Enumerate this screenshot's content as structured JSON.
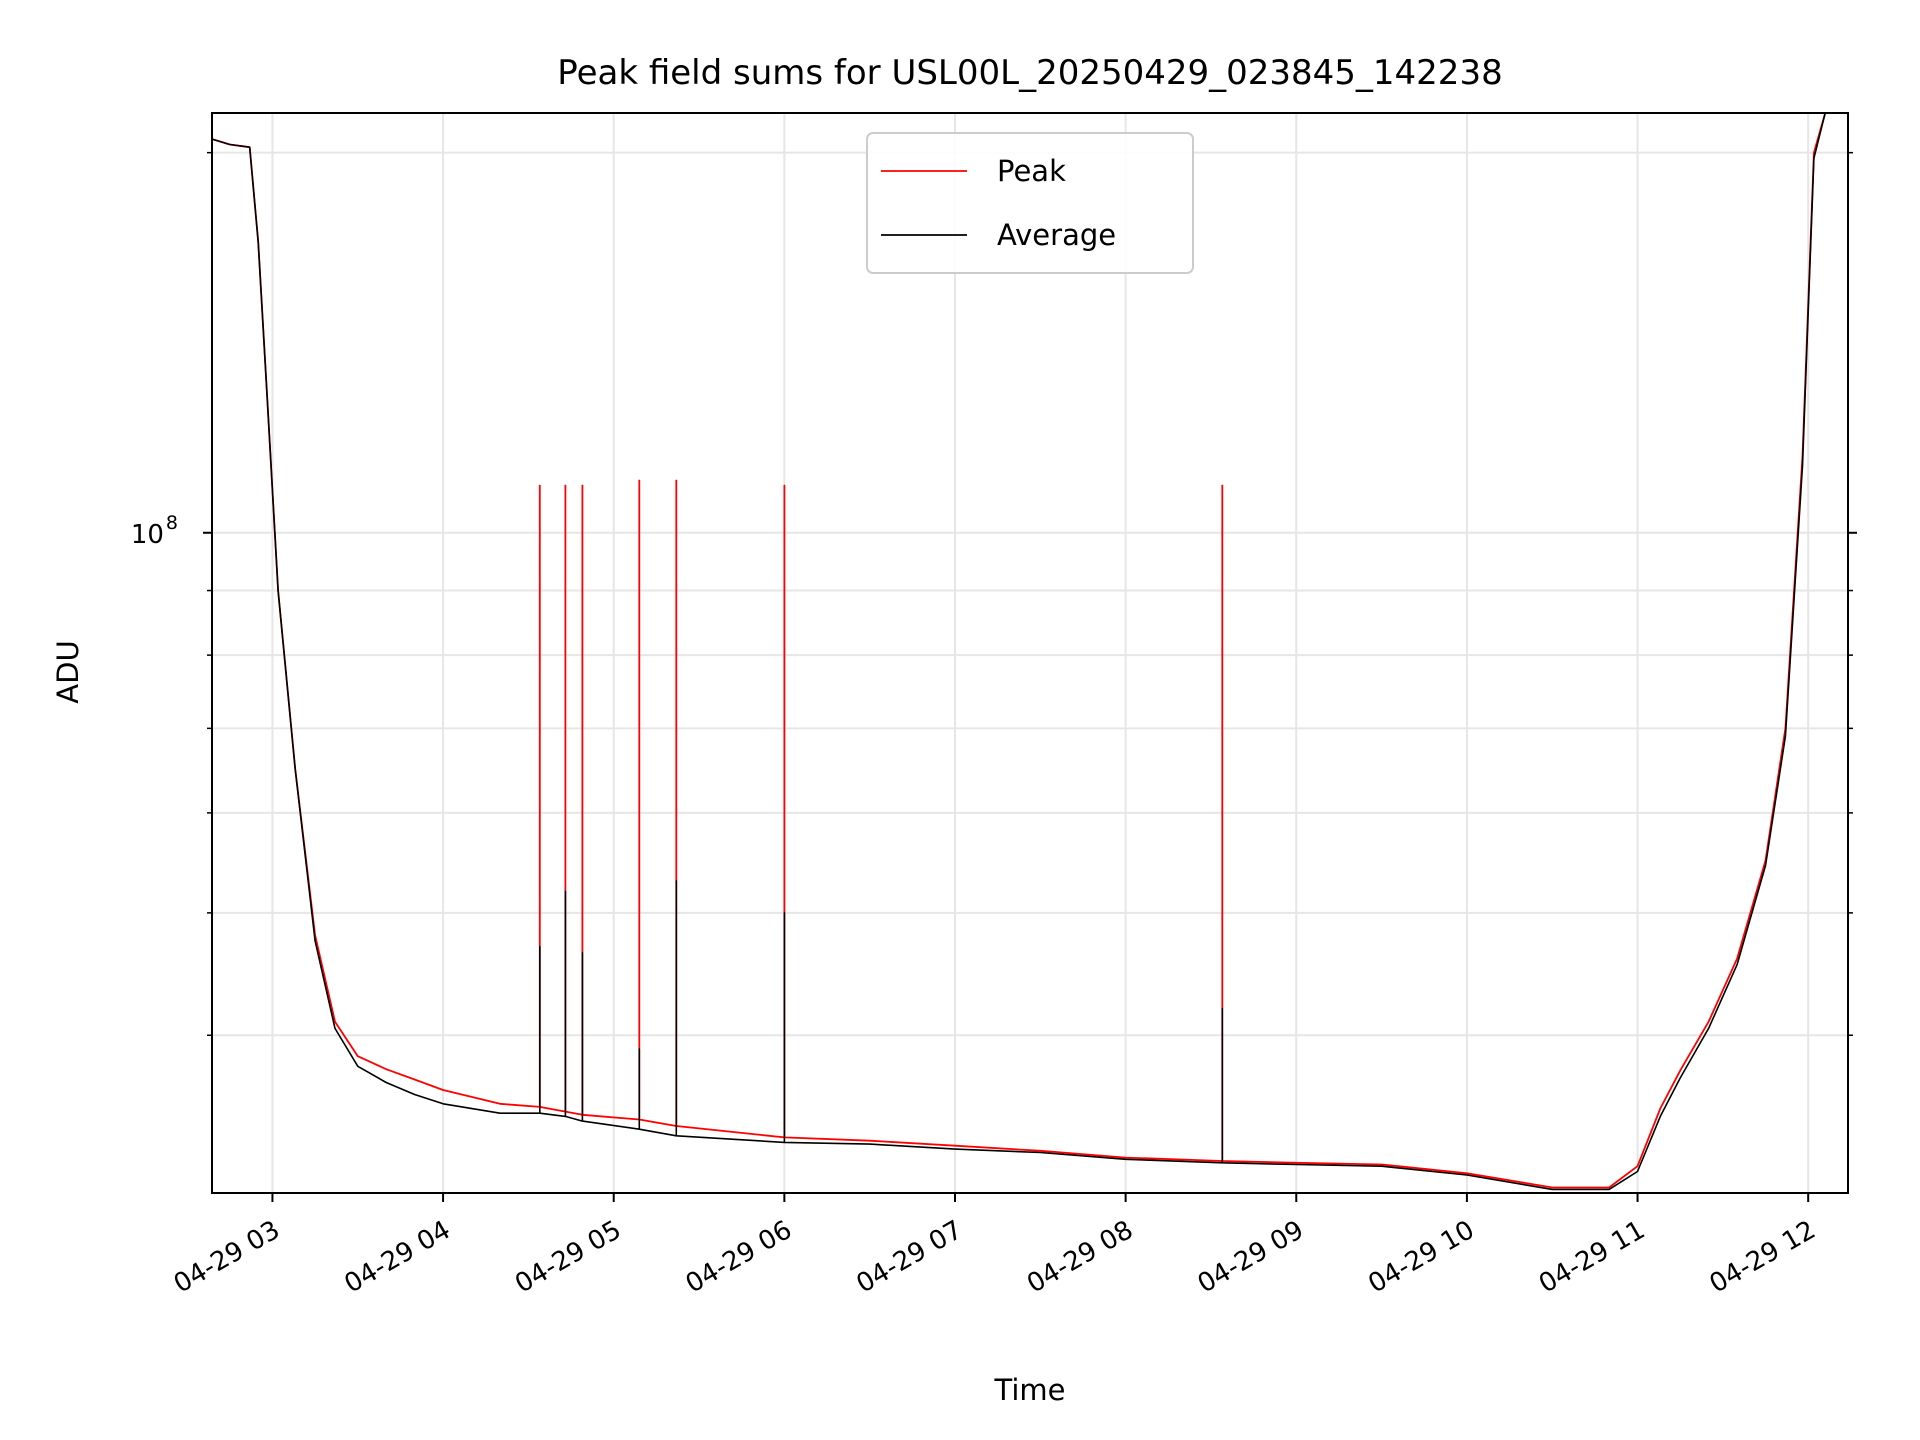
{
  "chart_data": {
    "type": "line",
    "title": "Peak field sums for USL00L_20250429_023845_142238",
    "xlabel": "Time",
    "ylabel": "ADU",
    "yscale": "log",
    "xlim": [
      "2025-04-29 02:38:45",
      "2025-04-29 12:14:00"
    ],
    "ylim": [
      30000000,
      215000000
    ],
    "grid": true,
    "legend_position": "upper center",
    "x_ticks": [
      {
        "value": "2025-04-29 03:00",
        "label": "04-29 03"
      },
      {
        "value": "2025-04-29 04:00",
        "label": "04-29 04"
      },
      {
        "value": "2025-04-29 05:00",
        "label": "04-29 05"
      },
      {
        "value": "2025-04-29 06:00",
        "label": "04-29 06"
      },
      {
        "value": "2025-04-29 07:00",
        "label": "04-29 07"
      },
      {
        "value": "2025-04-29 08:00",
        "label": "04-29 08"
      },
      {
        "value": "2025-04-29 09:00",
        "label": "04-29 09"
      },
      {
        "value": "2025-04-29 10:00",
        "label": "04-29 10"
      },
      {
        "value": "2025-04-29 11:00",
        "label": "04-29 11"
      },
      {
        "value": "2025-04-29 12:00",
        "label": "04-29 12"
      }
    ],
    "y_major_ticks": [
      {
        "value": 100000000,
        "label_base": "10",
        "label_exp": "8"
      }
    ],
    "y_minor_ticks": [
      40000000,
      50000000,
      60000000,
      70000000,
      80000000,
      90000000,
      200000000
    ],
    "series": [
      {
        "name": "Peak",
        "color": "#ff0000",
        "x": [
          "2025-04-29 02:38:45",
          "2025-04-29 02:45",
          "2025-04-29 02:52",
          "2025-04-29 02:55",
          "2025-04-29 02:58",
          "2025-04-29 03:02",
          "2025-04-29 03:08",
          "2025-04-29 03:15",
          "2025-04-29 03:22",
          "2025-04-29 03:30",
          "2025-04-29 03:40",
          "2025-04-29 03:50",
          "2025-04-29 04:00",
          "2025-04-29 04:20",
          "2025-04-29 04:34",
          "2025-04-29 04:34",
          "2025-04-29 04:34",
          "2025-04-29 04:43",
          "2025-04-29 04:43",
          "2025-04-29 04:43",
          "2025-04-29 04:49",
          "2025-04-29 04:49",
          "2025-04-29 04:49",
          "2025-04-29 05:09",
          "2025-04-29 05:09",
          "2025-04-29 05:09",
          "2025-04-29 05:22",
          "2025-04-29 05:22",
          "2025-04-29 05:22",
          "2025-04-29 06:00",
          "2025-04-29 06:00",
          "2025-04-29 06:00",
          "2025-04-29 06:30",
          "2025-04-29 07:00",
          "2025-04-29 07:30",
          "2025-04-29 08:00",
          "2025-04-29 08:34",
          "2025-04-29 08:34",
          "2025-04-29 08:34",
          "2025-04-29 09:00",
          "2025-04-29 09:30",
          "2025-04-29 10:00",
          "2025-04-29 10:30",
          "2025-04-29 10:50",
          "2025-04-29 11:00",
          "2025-04-29 11:08",
          "2025-04-29 11:15",
          "2025-04-29 11:25",
          "2025-04-29 11:35",
          "2025-04-29 11:45",
          "2025-04-29 11:52",
          "2025-04-29 11:58",
          "2025-04-29 12:02",
          "2025-04-29 12:06"
        ],
        "y": [
          205000000,
          203000000,
          202000000,
          170000000,
          130000000,
          90000000,
          65000000,
          48000000,
          41000000,
          38500000,
          37600000,
          36900000,
          36200000,
          35300000,
          35100000,
          109000000,
          35100000,
          34800000,
          109000000,
          34800000,
          34600000,
          109000000,
          34600000,
          34300000,
          110000000,
          34300000,
          33900000,
          110000000,
          33900000,
          33200000,
          109000000,
          33200000,
          33000000,
          32700000,
          32400000,
          32000000,
          31800000,
          109000000,
          31800000,
          31700000,
          31600000,
          31100000,
          30300000,
          30300000,
          31500000,
          35000000,
          37500000,
          41000000,
          46000000,
          55000000,
          70000000,
          115000000,
          200000000,
          215000000
        ]
      },
      {
        "name": "Average",
        "color": "#000000",
        "x": [
          "2025-04-29 02:38:45",
          "2025-04-29 02:45",
          "2025-04-29 02:52",
          "2025-04-29 02:55",
          "2025-04-29 02:58",
          "2025-04-29 03:02",
          "2025-04-29 03:08",
          "2025-04-29 03:15",
          "2025-04-29 03:22",
          "2025-04-29 03:30",
          "2025-04-29 03:40",
          "2025-04-29 03:50",
          "2025-04-29 04:00",
          "2025-04-29 04:20",
          "2025-04-29 04:34",
          "2025-04-29 04:34",
          "2025-04-29 04:34",
          "2025-04-29 04:43",
          "2025-04-29 04:43",
          "2025-04-29 04:43",
          "2025-04-29 04:49",
          "2025-04-29 04:49",
          "2025-04-29 04:49",
          "2025-04-29 05:09",
          "2025-04-29 05:09",
          "2025-04-29 05:09",
          "2025-04-29 05:22",
          "2025-04-29 05:22",
          "2025-04-29 05:22",
          "2025-04-29 06:00",
          "2025-04-29 06:00",
          "2025-04-29 06:00",
          "2025-04-29 06:30",
          "2025-04-29 07:00",
          "2025-04-29 07:30",
          "2025-04-29 08:00",
          "2025-04-29 08:34",
          "2025-04-29 08:34",
          "2025-04-29 08:34",
          "2025-04-29 09:00",
          "2025-04-29 09:30",
          "2025-04-29 10:00",
          "2025-04-29 10:30",
          "2025-04-29 10:50",
          "2025-04-29 11:00",
          "2025-04-29 11:08",
          "2025-04-29 11:15",
          "2025-04-29 11:25",
          "2025-04-29 11:35",
          "2025-04-29 11:45",
          "2025-04-29 11:52",
          "2025-04-29 11:58",
          "2025-04-29 12:02",
          "2025-04-29 12:06"
        ],
        "y": [
          205000000,
          203000000,
          202000000,
          170000000,
          130000000,
          90000000,
          65000000,
          47500000,
          40500000,
          37800000,
          36700000,
          35900000,
          35300000,
          34700000,
          34700000,
          47000000,
          34700000,
          34500000,
          52000000,
          34500000,
          34200000,
          46500000,
          34200000,
          33700000,
          39000000,
          33700000,
          33300000,
          53000000,
          33300000,
          32900000,
          50000000,
          32900000,
          32800000,
          32500000,
          32300000,
          31900000,
          31700000,
          42000000,
          31700000,
          31600000,
          31500000,
          31000000,
          30200000,
          30200000,
          31200000,
          34500000,
          37000000,
          40500000,
          45500000,
          54500000,
          69000000,
          113000000,
          198000000,
          215000000
        ]
      }
    ]
  }
}
